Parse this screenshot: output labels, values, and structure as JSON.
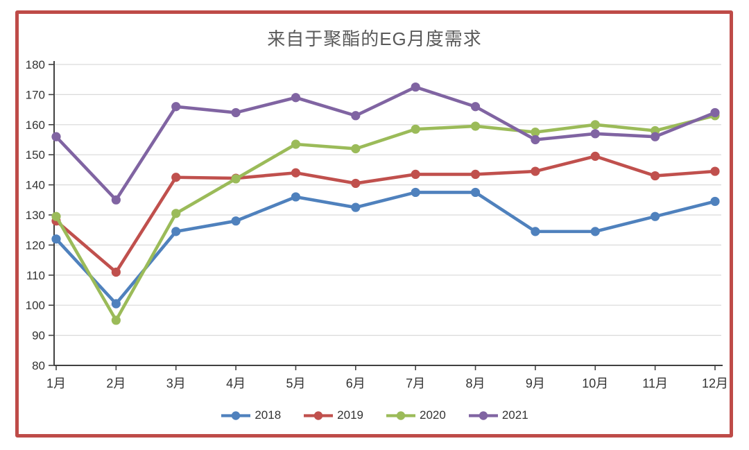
{
  "chart_data": {
    "type": "line",
    "title": "来自于聚酯的EG月度需求",
    "categories": [
      "1月",
      "2月",
      "3月",
      "4月",
      "5月",
      "6月",
      "7月",
      "8月",
      "9月",
      "10月",
      "11月",
      "12月"
    ],
    "series": [
      {
        "name": "2018",
        "color": "#4F81BD",
        "values": [
          122,
          100.5,
          124.5,
          128,
          136,
          132.5,
          137.5,
          137.5,
          124.5,
          124.5,
          129.5,
          134.5
        ]
      },
      {
        "name": "2019",
        "color": "#C0504D",
        "values": [
          128,
          111,
          142.5,
          142.2,
          144,
          140.5,
          143.5,
          143.5,
          144.5,
          149.5,
          143,
          144.5
        ]
      },
      {
        "name": "2020",
        "color": "#9BBB59",
        "values": [
          129.5,
          95,
          130.5,
          142,
          153.5,
          152,
          158.5,
          159.5,
          157.5,
          160,
          158,
          163
        ]
      },
      {
        "name": "2021",
        "color": "#8064A2",
        "values": [
          156,
          135,
          166,
          164,
          169,
          163,
          172.5,
          166,
          155,
          157,
          156,
          164
        ]
      }
    ],
    "ylim": [
      80,
      180
    ],
    "ytick_step": 10,
    "xlabel": "",
    "ylabel": "",
    "grid": "horizontal",
    "legend_position": "bottom",
    "legend_labels": [
      "2018",
      "2019",
      "2020",
      "2021"
    ],
    "frame_color": "#BE4B48",
    "title_color": "#595959",
    "axis_color": "#404040",
    "tick_label_color": "#333333",
    "grid_color": "#D9D9D9"
  }
}
